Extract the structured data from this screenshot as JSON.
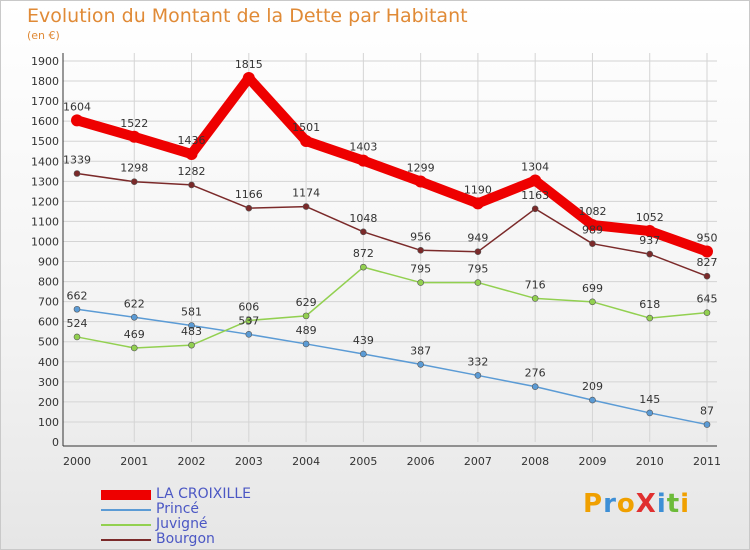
{
  "title": "Evolution du Montant de la Dette par Habitant",
  "subtitle": "(en €)",
  "logo_text": "ProXiti",
  "chart_data": {
    "type": "line",
    "x": [
      "2000",
      "2001",
      "2002",
      "2003",
      "2004",
      "2005",
      "2006",
      "2007",
      "2008",
      "2009",
      "2010",
      "2011"
    ],
    "ylim": [
      0,
      1900
    ],
    "yticks": [
      0,
      100,
      200,
      300,
      400,
      500,
      600,
      700,
      800,
      900,
      1000,
      1100,
      1200,
      1300,
      1400,
      1500,
      1600,
      1700,
      1800,
      1900
    ],
    "grid": true,
    "legend_position": "bottom-left",
    "series": [
      {
        "name": "LA CROIXILLE",
        "color": "#ee0000",
        "values": [
          1604,
          1522,
          1436,
          1815,
          1501,
          1403,
          1299,
          1190,
          1304,
          1082,
          1052,
          950
        ]
      },
      {
        "name": "Princé",
        "color": "#5b9bd5",
        "values": [
          662,
          622,
          581,
          537,
          489,
          439,
          387,
          332,
          276,
          209,
          145,
          87
        ]
      },
      {
        "name": "Juvigné",
        "color": "#92d050",
        "values": [
          524,
          469,
          483,
          606,
          629,
          872,
          795,
          795,
          716,
          699,
          618,
          645
        ]
      },
      {
        "name": "Bourgon",
        "color": "#7b2a2a",
        "values": [
          1339,
          1298,
          1282,
          1166,
          1174,
          1048,
          956,
          949,
          1163,
          989,
          937,
          827
        ]
      }
    ]
  }
}
